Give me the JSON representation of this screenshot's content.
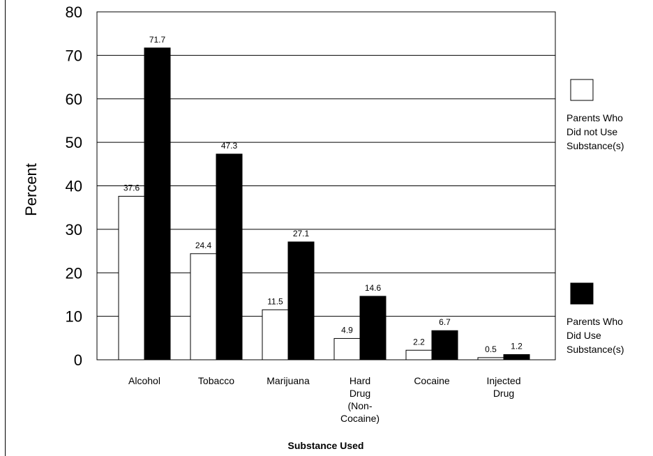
{
  "chart_data": {
    "type": "bar",
    "title": "",
    "xlabel": "Substance Used",
    "ylabel": "Percent",
    "ylim": [
      0,
      80
    ],
    "yticks": [
      0,
      10,
      20,
      30,
      40,
      50,
      60,
      70,
      80
    ],
    "grid": true,
    "legend_position": "right",
    "categories": [
      [
        "Alcohol"
      ],
      [
        "Tobacco"
      ],
      [
        "Marijuana"
      ],
      [
        "Hard",
        "Drug",
        "(Non-",
        "Cocaine)"
      ],
      [
        "Cocaine"
      ],
      [
        "Injected",
        "Drug"
      ]
    ],
    "series": [
      {
        "name": [
          "Parents Who",
          "Did not Use",
          "Substance(s)"
        ],
        "color": "#ffffff",
        "values": [
          37.6,
          24.4,
          11.5,
          4.9,
          2.2,
          0.5
        ]
      },
      {
        "name": [
          "Parents Who",
          "Did Use",
          "Substance(s)"
        ],
        "color": "#000000",
        "values": [
          71.7,
          47.3,
          27.1,
          14.6,
          6.7,
          1.2
        ]
      }
    ]
  }
}
